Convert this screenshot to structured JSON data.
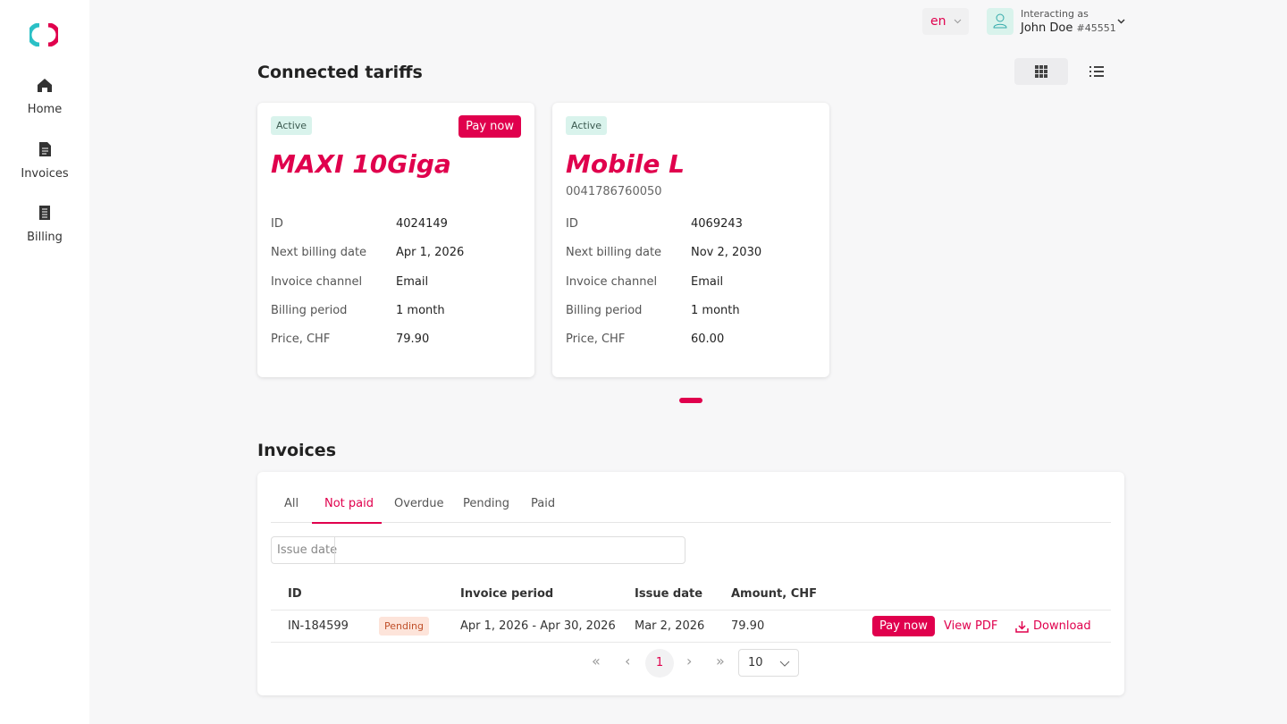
{
  "sidebar": {
    "nav": [
      {
        "label": "Home"
      },
      {
        "label": "Invoices"
      },
      {
        "label": "Billing"
      }
    ]
  },
  "header": {
    "language": "en",
    "user_caption": "Interacting as",
    "user_name": "John Doe",
    "user_id": "#45551"
  },
  "tariffs": {
    "title": "Connected tariffs",
    "cards": [
      {
        "status": "Active",
        "action": "Pay now",
        "name": "MAXI 10Giga",
        "fields": [
          {
            "label": "ID",
            "value": "4024149"
          },
          {
            "label": "Next billing date",
            "value": "Apr 1, 2026"
          },
          {
            "label": "Invoice channel",
            "value": "Email"
          },
          {
            "label": "Billing period",
            "value": "1 month"
          },
          {
            "label": "Price, CHF",
            "value": "79.90"
          }
        ]
      },
      {
        "status": "Active",
        "name": "Mobile L",
        "number": "0041786760050",
        "fields": [
          {
            "label": "ID",
            "value": "4069243"
          },
          {
            "label": "Next billing date",
            "value": "Nov 2, 2030"
          },
          {
            "label": "Invoice channel",
            "value": "Email"
          },
          {
            "label": "Billing period",
            "value": "1 month"
          },
          {
            "label": "Price, CHF",
            "value": "60.00"
          }
        ]
      }
    ]
  },
  "invoices": {
    "title": "Invoices",
    "tabs": [
      "All",
      "Not paid",
      "Overdue",
      "Pending",
      "Paid"
    ],
    "active_tab": 1,
    "filter_label": "Issue date",
    "headers": [
      "ID",
      "Invoice period",
      "Issue date",
      "Amount, CHF"
    ],
    "rows": [
      {
        "id": "IN-184599",
        "status": "Pending",
        "period": "Apr 1, 2026 - Apr 30, 2026",
        "issue_date": "Mar 2, 2026",
        "amount": "79.90",
        "actions": [
          "Pay now",
          "View PDF",
          "Download"
        ]
      }
    ],
    "pagination": {
      "page": "1",
      "page_size": "10"
    }
  }
}
